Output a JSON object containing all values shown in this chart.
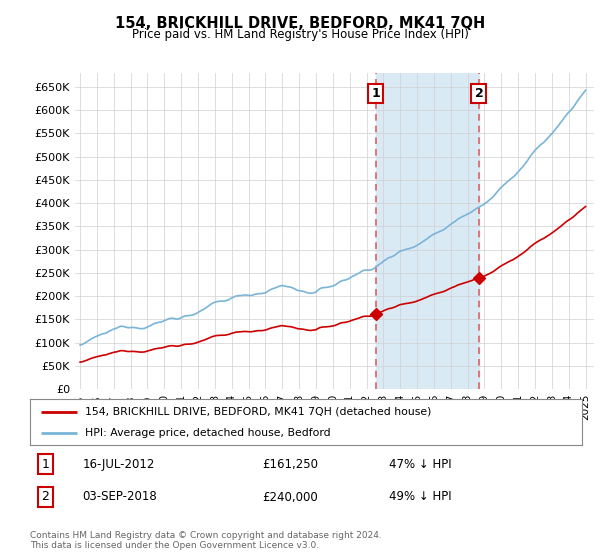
{
  "title": "154, BRICKHILL DRIVE, BEDFORD, MK41 7QH",
  "subtitle": "Price paid vs. HM Land Registry's House Price Index (HPI)",
  "legend_line1": "154, BRICKHILL DRIVE, BEDFORD, MK41 7QH (detached house)",
  "legend_line2": "HPI: Average price, detached house, Bedford",
  "sale1_date_label": "16-JUL-2012",
  "sale1_price_label": "£161,250",
  "sale1_pct_label": "47% ↓ HPI",
  "sale2_date_label": "03-SEP-2018",
  "sale2_price_label": "£240,000",
  "sale2_pct_label": "49% ↓ HPI",
  "footer": "Contains HM Land Registry data © Crown copyright and database right 2024.\nThis data is licensed under the Open Government Licence v3.0.",
  "hpi_color": "#7ab4d8",
  "price_color": "#cc0000",
  "background_color": "#ffffff",
  "shaded_region_color": "#daeaf5",
  "dashed_line_color": "#e06060",
  "ylim": [
    0,
    680000
  ],
  "yticks": [
    0,
    50000,
    100000,
    150000,
    200000,
    250000,
    300000,
    350000,
    400000,
    450000,
    500000,
    550000,
    600000,
    650000
  ],
  "x_start_year": 1995,
  "x_end_year": 2025,
  "sale1_year": 2012.54,
  "sale2_year": 2018.67,
  "sale1_price": 161250,
  "sale2_price": 240000
}
